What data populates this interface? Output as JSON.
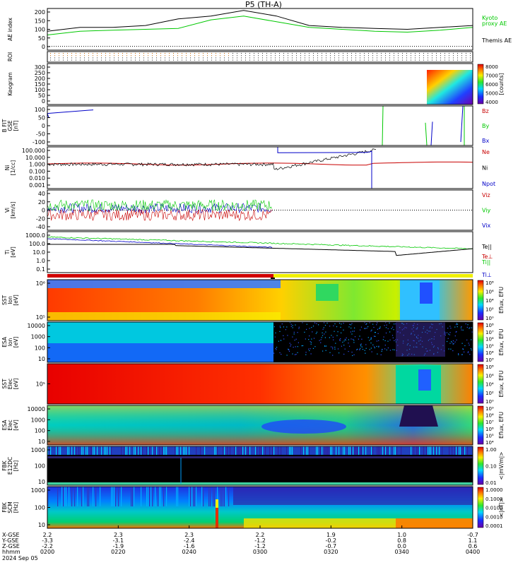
{
  "title": "P5 (TH-A)",
  "time_axis": {
    "ticks": [
      "0200",
      "0220",
      "0240",
      "0300",
      "0320",
      "0340",
      "0400"
    ],
    "date": "2024 Sep 05",
    "row_labels": [
      "X-GSE",
      "Y-GSE",
      "Z-GSE",
      "hhmm"
    ],
    "rows": [
      [
        "2.2",
        "2.3",
        "2.3",
        "2.2",
        "1.9",
        "1.0",
        "-0.7"
      ],
      [
        "-3.3",
        "-3.1",
        "-2.4",
        "-1.2",
        "-0.2",
        "0.8",
        "1.1"
      ],
      [
        "-2.2",
        "-1.9",
        "-1.6",
        "-1.2",
        "-0.7",
        "0.0",
        "0.6"
      ]
    ]
  },
  "chart_data": [
    {
      "type": "line",
      "ylabel": "AE index",
      "ylim": [
        -20,
        200
      ],
      "yticks": [
        "200",
        "150",
        "100",
        "50",
        "0"
      ],
      "series": [
        {
          "name": "Kyoto\nproxy AE",
          "color": "#00c800",
          "values": [
            60,
            80,
            85,
            90,
            95,
            140,
            160,
            130,
            100,
            90,
            80,
            75,
            85,
            100
          ]
        },
        {
          "name": "Themis AE",
          "color": "#000000",
          "values": [
            80,
            100,
            100,
            110,
            145,
            160,
            190,
            160,
            110,
            100,
            95,
            90,
            100,
            110
          ]
        }
      ]
    },
    {
      "type": "heatmap",
      "ylabel": "ROI"
    },
    {
      "type": "heatmap",
      "ylabel": "Keogram",
      "yticks": [
        "300",
        "250",
        "200",
        "150",
        "100",
        "50",
        "0"
      ],
      "colorbar": {
        "ticks": [
          "8000",
          "7000",
          "6000",
          "5000",
          "4000"
        ],
        "label": "[counts]"
      }
    },
    {
      "type": "line",
      "ylabel": "B FIT\nGSE\n[nT]",
      "ylim": [
        -100,
        100
      ],
      "yticks": [
        "100",
        "50",
        "0",
        "-50",
        "-100"
      ],
      "series": [
        {
          "name": "Bz",
          "color": "#c80000"
        },
        {
          "name": "By",
          "color": "#00c800"
        },
        {
          "name": "Bx",
          "color": "#0000c8"
        }
      ]
    },
    {
      "type": "line",
      "ylabel": "Ni\n[1/cc]",
      "ylim": [
        0.001,
        100
      ],
      "yticks": [
        "100.000",
        "10.000",
        "1.000",
        "0.100",
        "0.010",
        "0.001"
      ],
      "series": [
        {
          "name": "Ne",
          "color": "#c80000"
        },
        {
          "name": "Ni",
          "color": "#000000"
        },
        {
          "name": "Npot",
          "color": "#0000c8"
        }
      ]
    },
    {
      "type": "line",
      "ylabel": "Vi\n[km/s]",
      "ylim": [
        -50,
        50
      ],
      "yticks": [
        "40",
        "20",
        "0",
        "-20",
        "-40"
      ],
      "series": [
        {
          "name": "Viz",
          "color": "#c80000"
        },
        {
          "name": "Viy",
          "color": "#00c800"
        },
        {
          "name": "Vix",
          "color": "#0000c8"
        }
      ]
    },
    {
      "type": "line",
      "ylabel": "Ti\n[eV]",
      "ylim": [
        0.1,
        10000
      ],
      "yticks": [
        "1000.0",
        "100.0",
        "10.0",
        "1.0",
        "0.1"
      ],
      "series": [
        {
          "name": "Te||",
          "color": "#000000"
        },
        {
          "name": "Te⊥",
          "color": "#c80000"
        },
        {
          "name": "Ti||",
          "color": "#00c800"
        },
        {
          "name": "Ti⊥",
          "color": "#0000c8"
        }
      ]
    },
    {
      "type": "heatmap",
      "ylabel": "SST\nIon\n[eV]",
      "yticks": [
        "10⁶",
        "10⁵"
      ],
      "colorbar": {
        "ticks": [
          "10⁸",
          "10⁶",
          "10⁴",
          "10²",
          "10⁰"
        ],
        "label": "Eflux, EFU"
      }
    },
    {
      "type": "heatmap",
      "ylabel": "ESA\nIon\n[eV]",
      "yticks": [
        "10000",
        "1000",
        "100",
        "10"
      ],
      "colorbar": {
        "ticks": [
          "10⁸",
          "10⁷",
          "10⁶",
          "10⁵",
          "10⁴",
          "10³"
        ],
        "label": "Eflux, EFU"
      }
    },
    {
      "type": "heatmap",
      "ylabel": "SST\nElec\n[eV]",
      "yticks": [
        "10⁵"
      ],
      "colorbar": {
        "ticks": [
          "10⁸",
          "10⁶",
          "10⁴",
          "10²",
          "10⁰"
        ],
        "label": "Eflux, EFU"
      }
    },
    {
      "type": "heatmap",
      "ylabel": "ESA\nElec\n[eV]",
      "yticks": [
        "10000",
        "1000",
        "100",
        "10"
      ],
      "colorbar": {
        "ticks": [
          "10⁹",
          "10⁸",
          "10⁷",
          "10⁶",
          "10⁵",
          "10⁴"
        ],
        "label": "Eflux, EFU"
      }
    },
    {
      "type": "heatmap",
      "ylabel": "FBK\nE12DC\n[Hz]",
      "yticks": [
        "1000",
        "100",
        "10"
      ],
      "colorbar": {
        "ticks": [
          "1.00",
          "0.10",
          "0.01"
        ],
        "label": "<|mV/m|>"
      }
    },
    {
      "type": "heatmap",
      "ylabel": "FBK\nSCM\n[Hz]",
      "yticks": [
        "1000",
        "100",
        "10"
      ],
      "colorbar": {
        "ticks": [
          "1.0000",
          "0.1000",
          "0.0100",
          "0.0010",
          "0.0001"
        ],
        "label": "<|nT|>"
      }
    }
  ]
}
